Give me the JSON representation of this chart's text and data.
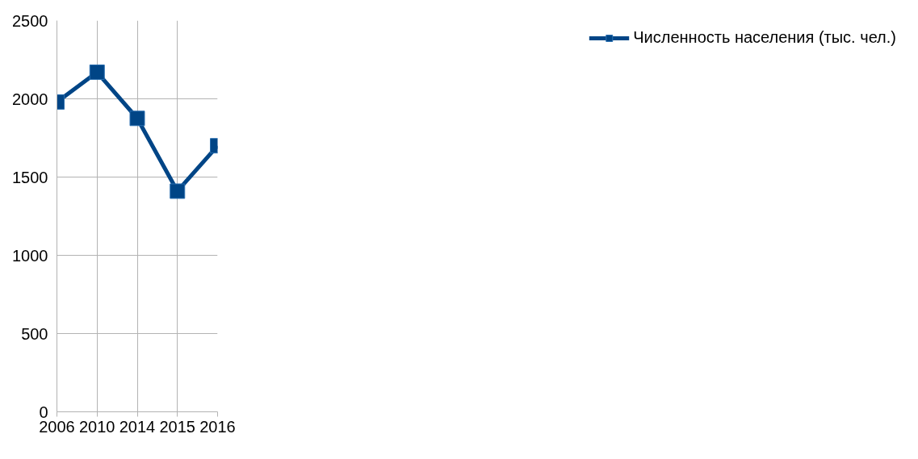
{
  "chart_data": {
    "type": "line",
    "categories": [
      "2006",
      "2010",
      "2014",
      "2015",
      "2016"
    ],
    "series": [
      {
        "name": "Численность населения (тыс. чел.)",
        "color": "#004586",
        "values": [
          1980,
          2170,
          1875,
          1410,
          1700
        ]
      }
    ],
    "ylim": [
      0,
      2500
    ],
    "yticks": [
      0,
      500,
      1000,
      1500,
      2000,
      2500
    ],
    "grid": true,
    "legend": "right",
    "marker": "square",
    "line_style": "solid"
  }
}
